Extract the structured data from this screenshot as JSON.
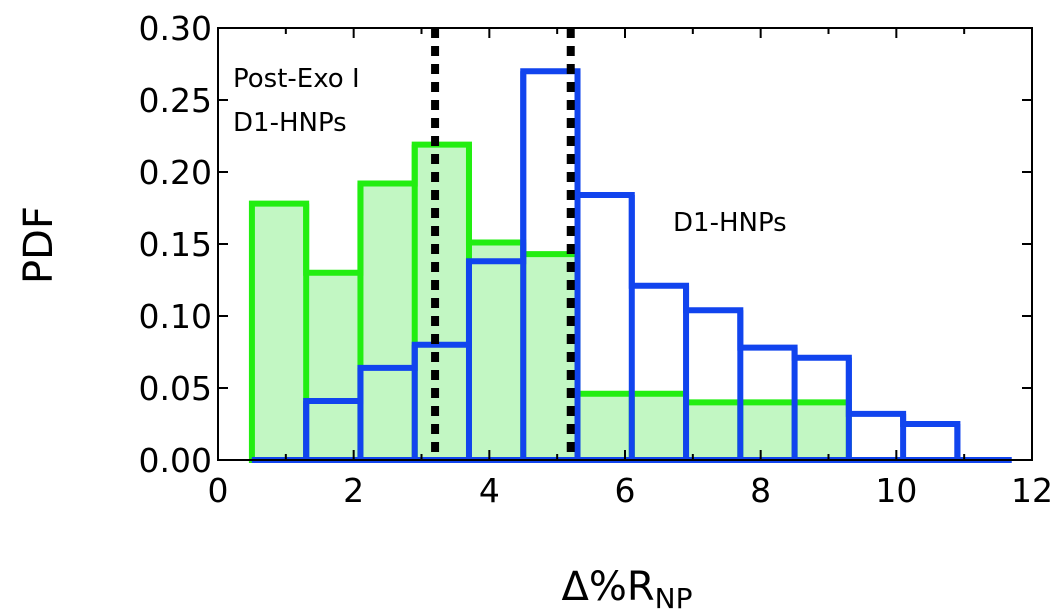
{
  "chart_data": {
    "type": "bar",
    "ylabel": "PDF",
    "xlabel_main": "Δ%R",
    "xlabel_sub": "NP",
    "xlim": [
      0,
      12
    ],
    "ylim": [
      0,
      0.3
    ],
    "xticks": [
      0,
      2,
      4,
      6,
      8,
      10,
      12
    ],
    "xtick_labels": [
      "0",
      "2",
      "4",
      "6",
      "8",
      "10",
      "12"
    ],
    "yticks": [
      0,
      0.05,
      0.1,
      0.15,
      0.2,
      0.25,
      0.3
    ],
    "ytick_labels": [
      "0.00",
      "0.05",
      "0.10",
      "0.15",
      "0.20",
      "0.25",
      "0.30"
    ],
    "grid": false,
    "series": [
      {
        "name": "Post-Exo I D1-HNPs",
        "color": "#22ee11",
        "fill": "#c2f7c3",
        "bin_edges": [
          0.5,
          1.3,
          2.1,
          2.9,
          3.7,
          4.5,
          5.3,
          6.1,
          6.9,
          7.7,
          8.5,
          9.3
        ],
        "values": [
          0.178,
          0.13,
          0.192,
          0.219,
          0.151,
          0.143,
          0.046,
          0.046,
          0.04,
          0.04,
          0.04
        ]
      },
      {
        "name": "D1-HNPs",
        "color": "#1144ee",
        "fill": "none",
        "bin_edges": [
          0.5,
          1.3,
          2.1,
          2.9,
          3.7,
          4.5,
          5.3,
          6.1,
          6.9,
          7.7,
          8.5,
          9.3,
          10.1,
          10.9,
          11.7
        ],
        "values": [
          0.0,
          0.041,
          0.064,
          0.08,
          0.138,
          0.27,
          0.184,
          0.121,
          0.104,
          0.078,
          0.071,
          0.032,
          0.025,
          0.0
        ]
      }
    ],
    "vlines": [
      3.2,
      5.2
    ],
    "annotations": {
      "green_line1": "Post-Exo I",
      "green_line2": "D1-HNPs",
      "blue": "D1-HNPs"
    }
  }
}
